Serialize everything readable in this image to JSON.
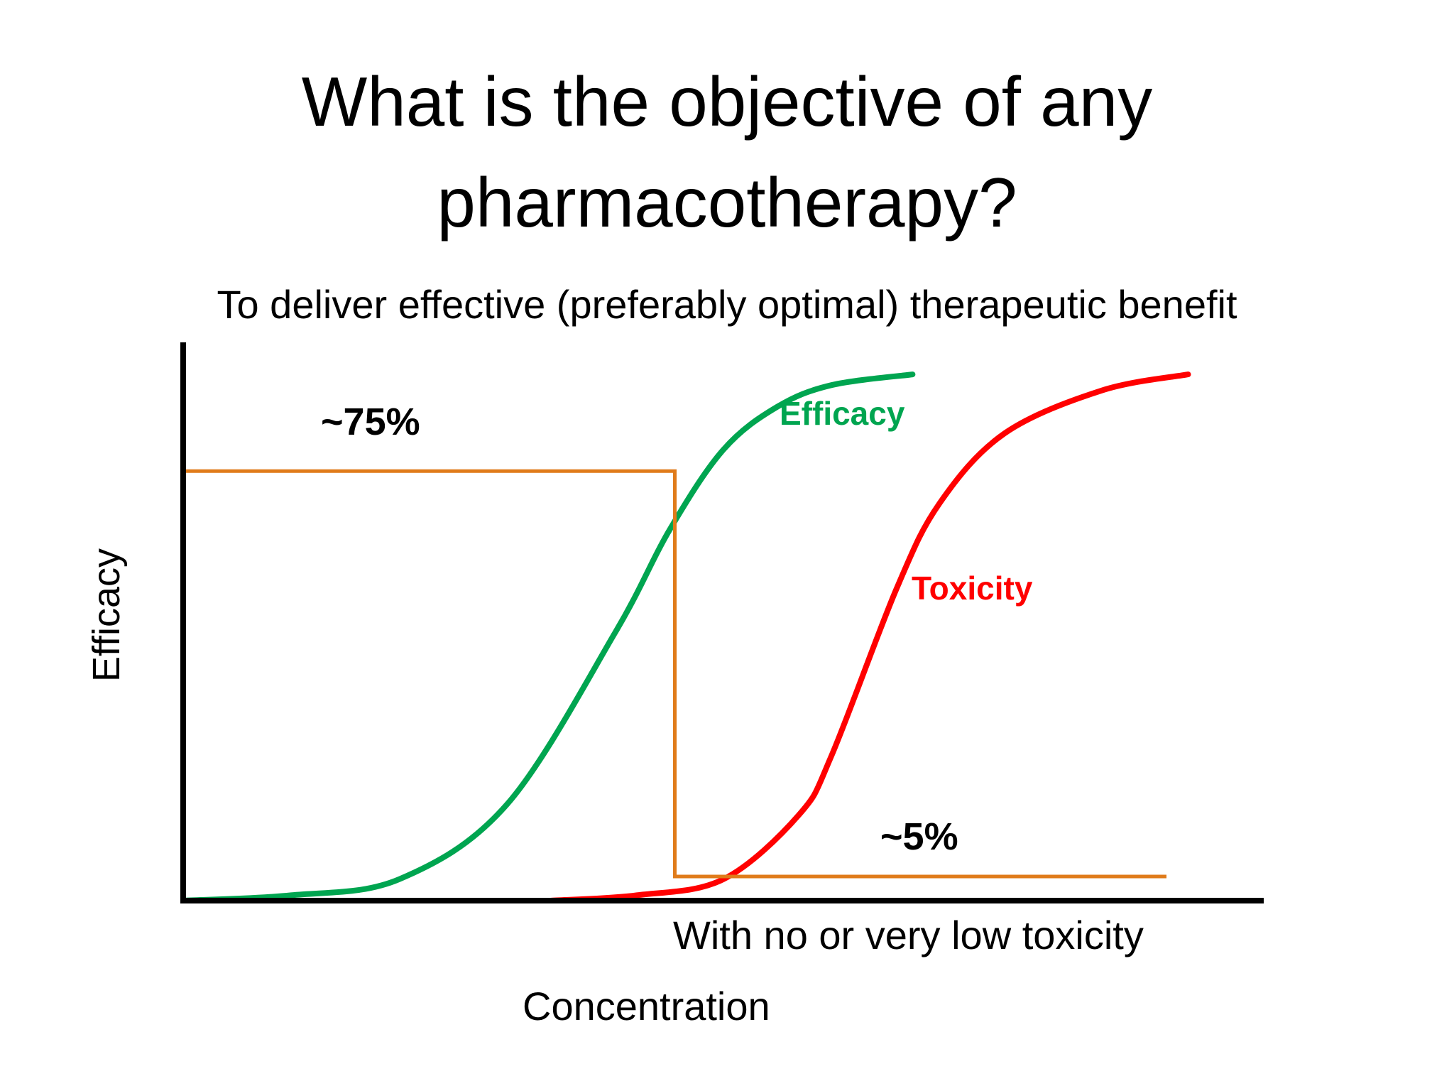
{
  "slide": {
    "title_line1": "What is the objective of any",
    "title_line2": "pharmacotherapy?",
    "subtitle": "To deliver effective (preferably optimal) therapeutic benefit",
    "note": "With no or very low toxicity"
  },
  "chart_data": {
    "type": "line",
    "title": "",
    "xlabel": "Concentration",
    "ylabel": "Efficacy",
    "xlim": [
      0,
      1
    ],
    "ylim": [
      0,
      1
    ],
    "grid": false,
    "series": [
      {
        "name": "Efficacy",
        "color": "#00a550",
        "x": [
          0.0,
          0.1,
          0.2,
          0.3,
          0.4,
          0.45,
          0.5,
          0.55,
          0.6,
          0.675
        ],
        "y": [
          0.0,
          0.01,
          0.04,
          0.18,
          0.5,
          0.69,
          0.84,
          0.92,
          0.96,
          0.98
        ]
      },
      {
        "name": "Toxicity",
        "color": "#ff0000",
        "x": [
          0.34,
          0.42,
          0.5,
          0.57,
          0.6,
          0.66,
          0.7,
          0.76,
          0.85,
          0.93
        ],
        "y": [
          0.0,
          0.01,
          0.04,
          0.16,
          0.27,
          0.58,
          0.74,
          0.87,
          0.95,
          0.98
        ]
      }
    ],
    "window": {
      "color": "#e07b1a",
      "left_level": 0.8,
      "right_level": 0.045,
      "drop_at": 0.455,
      "end_at": 0.91,
      "left_label": "~75%",
      "right_label": "~5%"
    }
  }
}
